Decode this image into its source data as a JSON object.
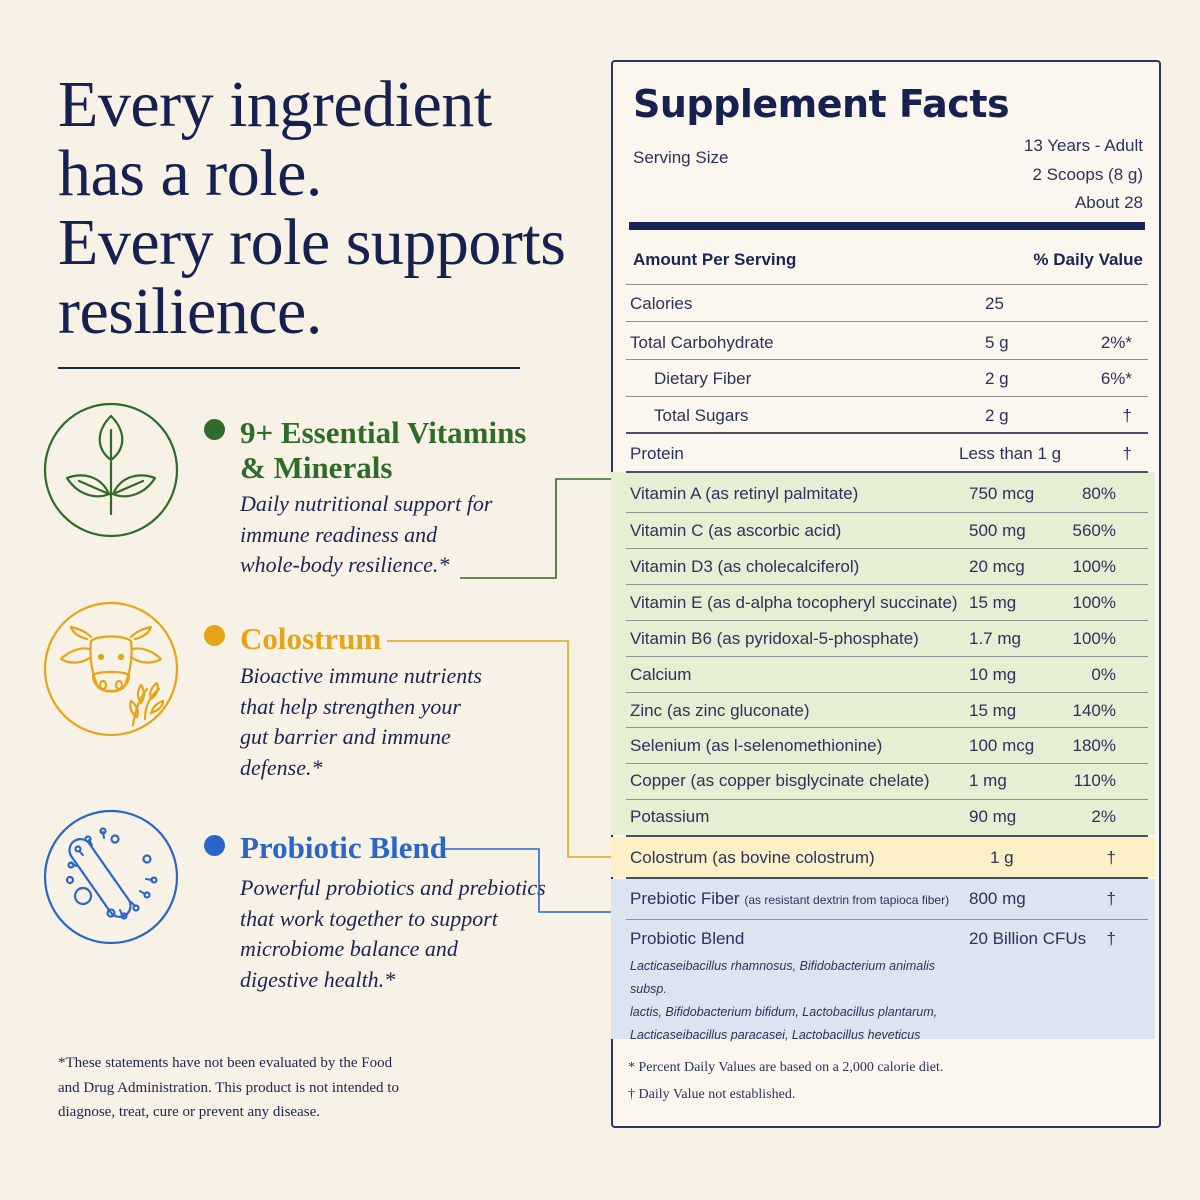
{
  "headline": {
    "lines": [
      "Every ingredient",
      "has a role.",
      "Every role supports",
      "resilience."
    ]
  },
  "colors": {
    "background": "#f8f1e6",
    "navy": "#1c2552",
    "green": "#2f6b2a",
    "gold": "#e6a417",
    "blue": "#2a66c8",
    "green_band": "#e6eed4",
    "yellow_band": "#fdf0c7",
    "blue_band": "#dbe5f0"
  },
  "features": [
    {
      "icon": "leaf-plant-icon",
      "title_lines": [
        "9+ Essential Vitamins",
        "& Minerals"
      ],
      "description_lines": [
        "Daily nutritional support for",
        "immune readiness and",
        "whole-body resilience.*"
      ]
    },
    {
      "icon": "cow-icon",
      "title_lines": [
        "Colostrum"
      ],
      "description_lines": [
        "Bioactive immune nutrients",
        "that help strengthen your",
        "gut barrier and immune",
        "defense.*"
      ]
    },
    {
      "icon": "bacteria-icon",
      "title_lines": [
        "Probiotic Blend"
      ],
      "description_lines": [
        "Powerful probiotics and prebiotics",
        "that work together to support",
        "microbiome balance and",
        "digestive health.*"
      ]
    }
  ],
  "disclaimer_lines": [
    "*These statements have not been evaluated by the Food",
    "and Drug Administration. This product is not intended to",
    "diagnose, treat, cure or prevent any disease."
  ],
  "supplement_facts": {
    "title": "Supplement Facts",
    "serving_size_label": "Serving Size",
    "serving_values": [
      "13 Years - Adult",
      "2 Scoops (8 g)",
      "About 28"
    ],
    "amount_per_serving": "Amount Per Serving",
    "daily_value_header": "% Daily Value",
    "rows": [
      {
        "name": "Calories",
        "amount": "25",
        "dv": ""
      },
      {
        "name": "Total Carbohydrate",
        "amount": "5 g",
        "dv": "2%*"
      },
      {
        "name": "Dietary Fiber",
        "amount": "2 g",
        "dv": "6%*"
      },
      {
        "name": "Total Sugars",
        "amount": "2 g",
        "dv": "†"
      },
      {
        "name": "Protein",
        "amount": "Less than 1 g",
        "dv": "†"
      },
      {
        "name": "Vitamin A (as retinyl palmitate)",
        "amount": "750 mcg",
        "dv": "80%"
      },
      {
        "name": "Vitamin C (as ascorbic acid)",
        "amount": "500 mg",
        "dv": "560%"
      },
      {
        "name": "Vitamin D3 (as cholecalciferol)",
        "amount": "20 mcg",
        "dv": "100%"
      },
      {
        "name": "Vitamin E (as d-alpha tocopheryl succinate)",
        "amount": "15 mg",
        "dv": "100%"
      },
      {
        "name": "Vitamin B6 (as pyridoxal-5-phosphate)",
        "amount": "1.7 mg",
        "dv": "100%"
      },
      {
        "name": "Calcium",
        "amount": "10 mg",
        "dv": "0%"
      },
      {
        "name": "Zinc (as zinc gluconate)",
        "amount": "15 mg",
        "dv": "140%"
      },
      {
        "name": "Selenium (as l-selenomethionine)",
        "amount": "100 mcg",
        "dv": "180%"
      },
      {
        "name": "Copper (as copper bisglycinate chelate)",
        "amount": "1 mg",
        "dv": "110%"
      },
      {
        "name": "Potassium",
        "amount": "90 mg",
        "dv": "2%"
      },
      {
        "name": "Colostrum (as bovine colostrum)",
        "amount": "1 g",
        "dv": "†"
      },
      {
        "name": "Prebiotic Fiber",
        "name_note": "(as resistant dextrin from tapioca fiber)",
        "amount": "800 mg",
        "dv": "†"
      },
      {
        "name": "Probiotic Blend",
        "amount": "20 Billion CFUs",
        "dv": "†"
      }
    ],
    "probiotic_strains_lines": [
      "Lacticaseibacillus rhamnosus, Bifidobacterium animalis subsp.",
      "lactis, Bifidobacterium bifidum, Lactobacillus plantarum,",
      "Lacticaseibacillus paracasei, Lactobacillus heveticus"
    ],
    "footnotes": [
      "*  Percent Daily Values are based on a 2,000 calorie diet.",
      "†  Daily Value not established."
    ]
  }
}
